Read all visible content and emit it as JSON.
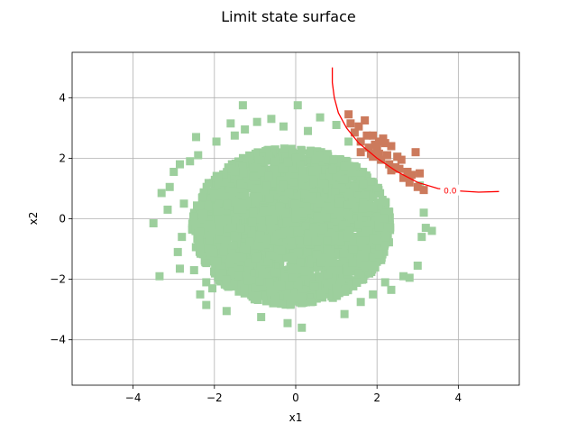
{
  "chart_data": {
    "type": "scatter",
    "title": "Limit state surface",
    "xlabel": "x1",
    "ylabel": "x2",
    "xlim": [
      -5.5,
      5.5
    ],
    "ylim": [
      -5.5,
      5.5
    ],
    "xticks": [
      -4,
      -2,
      0,
      2,
      4
    ],
    "yticks": [
      -4,
      -2,
      0,
      2,
      4
    ],
    "xtick_labels": [
      "−4",
      "−2",
      "0",
      "2",
      "4"
    ],
    "ytick_labels": [
      "−4",
      "−2",
      "0",
      "2",
      "4"
    ],
    "grid": true,
    "sample_distribution": "standard normal cloud centered at (0, 0), approx. 2500 points",
    "series": [
      {
        "role": "safe",
        "color": "#9dcf9d",
        "marker": "square",
        "points": [
          [
            -3.5,
            -0.15
          ],
          [
            -3.35,
            -1.9
          ],
          [
            -3.3,
            0.85
          ],
          [
            -3.15,
            0.3
          ],
          [
            -3.1,
            1.05
          ],
          [
            -3.0,
            1.55
          ],
          [
            -2.85,
            -1.65
          ],
          [
            -2.85,
            1.8
          ],
          [
            -2.75,
            0.5
          ],
          [
            -2.5,
            -1.7
          ],
          [
            -2.45,
            2.7
          ],
          [
            -2.35,
            -2.5
          ],
          [
            -2.2,
            -2.85
          ],
          [
            -2.05,
            -2.3
          ],
          [
            -1.95,
            2.55
          ],
          [
            -1.7,
            -3.05
          ],
          [
            -1.6,
            3.15
          ],
          [
            -1.3,
            3.75
          ],
          [
            -1.25,
            2.95
          ],
          [
            -0.95,
            3.2
          ],
          [
            -0.85,
            -3.25
          ],
          [
            -0.6,
            3.3
          ],
          [
            -0.2,
            -3.45
          ],
          [
            0.05,
            3.75
          ],
          [
            0.15,
            -3.6
          ],
          [
            0.6,
            3.35
          ],
          [
            1.0,
            3.1
          ],
          [
            1.2,
            -3.15
          ],
          [
            1.6,
            -2.75
          ],
          [
            1.9,
            -2.5
          ],
          [
            2.35,
            -2.35
          ],
          [
            2.5,
            2.05
          ],
          [
            2.65,
            -1.9
          ],
          [
            3.0,
            -1.55
          ],
          [
            3.05,
            1.1
          ],
          [
            3.1,
            -0.6
          ],
          [
            3.15,
            0.2
          ],
          [
            3.2,
            -0.3
          ],
          [
            3.35,
            -0.4
          ],
          [
            2.8,
            -1.95
          ],
          [
            -2.9,
            -1.1
          ],
          [
            -2.8,
            -0.6
          ],
          [
            -2.6,
            1.9
          ],
          [
            -2.4,
            2.1
          ],
          [
            -2.2,
            -2.1
          ],
          [
            -1.5,
            2.75
          ],
          [
            -0.3,
            3.05
          ],
          [
            0.3,
            2.9
          ],
          [
            1.3,
            2.55
          ],
          [
            2.2,
            -2.1
          ]
        ],
        "core": {
          "center": [
            -0.1,
            -0.25
          ],
          "radius_x": 2.45,
          "radius_y": 2.6
        }
      },
      {
        "role": "failure",
        "color": "#cc7a5c",
        "marker": "square",
        "points": [
          [
            1.3,
            3.45
          ],
          [
            1.35,
            3.15
          ],
          [
            1.45,
            2.85
          ],
          [
            1.55,
            3.05
          ],
          [
            1.6,
            2.55
          ],
          [
            1.7,
            3.25
          ],
          [
            1.75,
            2.75
          ],
          [
            1.8,
            2.35
          ],
          [
            1.85,
            2.15
          ],
          [
            1.9,
            2.05
          ],
          [
            1.95,
            2.45
          ],
          [
            2.0,
            2.3
          ],
          [
            2.05,
            2.15
          ],
          [
            2.1,
            1.95
          ],
          [
            2.15,
            2.65
          ],
          [
            2.2,
            2.5
          ],
          [
            2.25,
            2.1
          ],
          [
            2.3,
            1.8
          ],
          [
            2.35,
            2.4
          ],
          [
            2.5,
            2.05
          ],
          [
            2.55,
            1.65
          ],
          [
            2.6,
            1.95
          ],
          [
            2.65,
            1.35
          ],
          [
            2.75,
            1.55
          ],
          [
            2.8,
            1.2
          ],
          [
            2.95,
            2.2
          ],
          [
            3.0,
            1.05
          ],
          [
            3.05,
            1.5
          ],
          [
            3.15,
            0.95
          ],
          [
            2.45,
            1.7
          ],
          [
            2.05,
            2.55
          ],
          [
            1.9,
            2.75
          ],
          [
            1.6,
            2.2
          ],
          [
            2.85,
            1.45
          ],
          [
            2.35,
            1.6
          ]
        ]
      }
    ],
    "contour": {
      "level_label": "0.0",
      "color": "#ff0000",
      "points": [
        [
          0.9,
          5.0
        ],
        [
          0.9,
          4.5
        ],
        [
          0.95,
          4.0
        ],
        [
          1.05,
          3.5
        ],
        [
          1.25,
          3.0
        ],
        [
          1.55,
          2.5
        ],
        [
          2.0,
          2.0
        ],
        [
          2.5,
          1.55
        ],
        [
          3.0,
          1.2
        ],
        [
          3.5,
          1.0
        ],
        [
          4.0,
          0.92
        ],
        [
          4.5,
          0.88
        ],
        [
          5.0,
          0.9
        ]
      ],
      "label_at": [
        3.8,
        0.92
      ]
    }
  }
}
